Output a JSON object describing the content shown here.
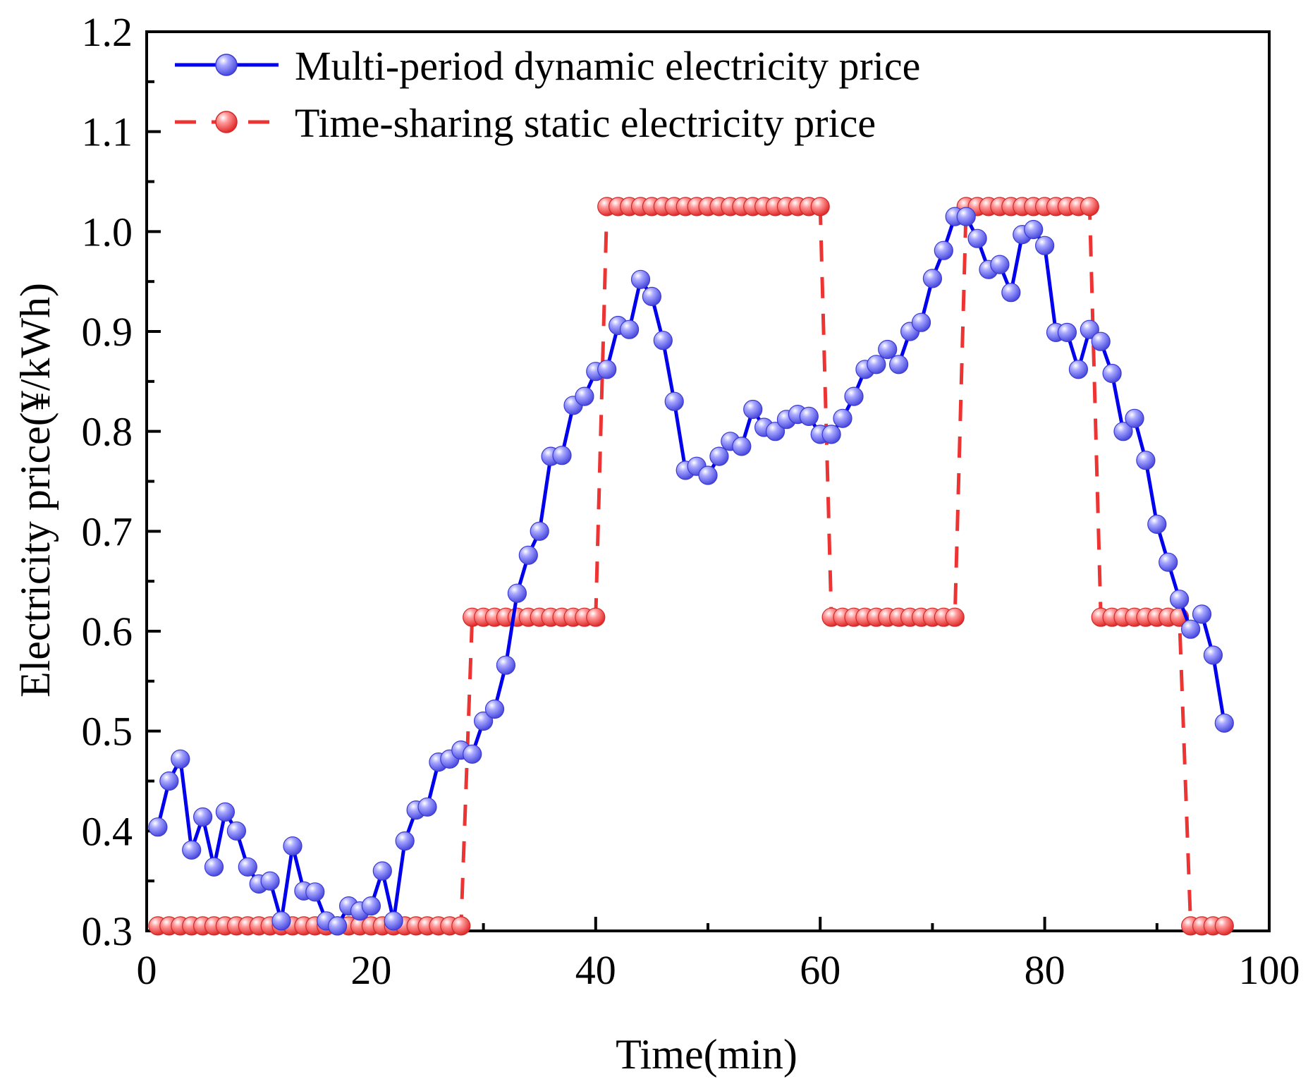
{
  "chart_data": {
    "type": "line",
    "title": "",
    "xlabel": "Time(min)",
    "ylabel": "Electricity price(¥/kWh)",
    "xlim": [
      0,
      100
    ],
    "ylim": [
      0.3,
      1.2
    ],
    "xticks": [
      0,
      20,
      40,
      60,
      80,
      100
    ],
    "xtick_labels": [
      "0",
      "20",
      "40",
      "60",
      "80",
      "100"
    ],
    "yticks": [
      0.3,
      0.4,
      0.5,
      0.6,
      0.7,
      0.8,
      0.9,
      1.0,
      1.1,
      1.2
    ],
    "ytick_labels": [
      "0.3",
      "0.4",
      "0.5",
      "0.6",
      "0.7",
      "0.8",
      "0.9",
      "1.0",
      "1.1",
      "1.2"
    ],
    "grid": false,
    "legend_position": "top-left",
    "series": [
      {
        "name": "Multi-period dynamic electricity price",
        "style": "solid",
        "color": "#0000ee",
        "marker_color": "#7070ff",
        "x": [
          1,
          2,
          3,
          4,
          5,
          6,
          7,
          8,
          9,
          10,
          11,
          12,
          13,
          14,
          15,
          16,
          17,
          18,
          19,
          20,
          21,
          22,
          23,
          24,
          25,
          26,
          27,
          28,
          29,
          30,
          31,
          32,
          33,
          34,
          35,
          36,
          37,
          38,
          39,
          40,
          41,
          42,
          43,
          44,
          45,
          46,
          47,
          48,
          49,
          50,
          51,
          52,
          53,
          54,
          55,
          56,
          57,
          58,
          59,
          60,
          61,
          62,
          63,
          64,
          65,
          66,
          67,
          68,
          69,
          70,
          71,
          72,
          73,
          74,
          75,
          76,
          77,
          78,
          79,
          80,
          81,
          82,
          83,
          84,
          85,
          86,
          87,
          88,
          89,
          90,
          91,
          92,
          93,
          94,
          95,
          96
        ],
        "values": [
          0.404,
          0.45,
          0.472,
          0.381,
          0.414,
          0.364,
          0.419,
          0.4,
          0.364,
          0.347,
          0.35,
          0.31,
          0.385,
          0.34,
          0.339,
          0.31,
          0.305,
          0.325,
          0.32,
          0.325,
          0.36,
          0.31,
          0.39,
          0.421,
          0.424,
          0.469,
          0.472,
          0.481,
          0.477,
          0.51,
          0.522,
          0.566,
          0.638,
          0.676,
          0.7,
          0.775,
          0.776,
          0.826,
          0.835,
          0.86,
          0.862,
          0.906,
          0.902,
          0.952,
          0.935,
          0.891,
          0.83,
          0.761,
          0.765,
          0.756,
          0.775,
          0.79,
          0.785,
          0.822,
          0.804,
          0.8,
          0.812,
          0.817,
          0.815,
          0.797,
          0.797,
          0.813,
          0.835,
          0.862,
          0.867,
          0.882,
          0.867,
          0.9,
          0.909,
          0.953,
          0.981,
          1.015,
          1.015,
          0.993,
          0.962,
          0.967,
          0.939,
          0.997,
          1.002,
          0.986,
          0.899,
          0.899,
          0.862,
          0.902,
          0.89,
          0.858,
          0.8,
          0.813,
          0.771,
          0.707,
          0.669,
          0.632,
          0.602,
          0.617,
          0.576,
          0.508
        ]
      },
      {
        "name": "Time-sharing static electricity price",
        "style": "dashed",
        "color": "#ee3333",
        "marker_color": "#ff6a6a",
        "x": [
          1,
          2,
          3,
          4,
          5,
          6,
          7,
          8,
          9,
          10,
          11,
          12,
          13,
          14,
          15,
          16,
          17,
          18,
          19,
          20,
          21,
          22,
          23,
          24,
          25,
          26,
          27,
          28,
          29,
          30,
          31,
          32,
          33,
          34,
          35,
          36,
          37,
          38,
          39,
          40,
          41,
          42,
          43,
          44,
          45,
          46,
          47,
          48,
          49,
          50,
          51,
          52,
          53,
          54,
          55,
          56,
          57,
          58,
          59,
          60,
          61,
          62,
          63,
          64,
          65,
          66,
          67,
          68,
          69,
          70,
          71,
          72,
          73,
          74,
          75,
          76,
          77,
          78,
          79,
          80,
          81,
          82,
          83,
          84,
          85,
          86,
          87,
          88,
          89,
          90,
          91,
          92,
          93,
          94,
          95,
          96
        ],
        "values": [
          0.305,
          0.305,
          0.305,
          0.305,
          0.305,
          0.305,
          0.305,
          0.305,
          0.305,
          0.305,
          0.305,
          0.305,
          0.305,
          0.305,
          0.305,
          0.305,
          0.305,
          0.305,
          0.305,
          0.305,
          0.305,
          0.305,
          0.305,
          0.305,
          0.305,
          0.305,
          0.305,
          0.305,
          0.614,
          0.614,
          0.614,
          0.614,
          0.614,
          0.614,
          0.614,
          0.614,
          0.614,
          0.614,
          0.614,
          0.614,
          1.025,
          1.025,
          1.025,
          1.025,
          1.025,
          1.025,
          1.025,
          1.025,
          1.025,
          1.025,
          1.025,
          1.025,
          1.025,
          1.025,
          1.025,
          1.025,
          1.025,
          1.025,
          1.025,
          1.025,
          0.614,
          0.614,
          0.614,
          0.614,
          0.614,
          0.614,
          0.614,
          0.614,
          0.614,
          0.614,
          0.614,
          0.614,
          1.025,
          1.025,
          1.025,
          1.025,
          1.025,
          1.025,
          1.025,
          1.025,
          1.025,
          1.025,
          1.025,
          1.025,
          0.614,
          0.614,
          0.614,
          0.614,
          0.614,
          0.614,
          0.614,
          0.614,
          0.305,
          0.305,
          0.305,
          0.305
        ]
      }
    ]
  }
}
